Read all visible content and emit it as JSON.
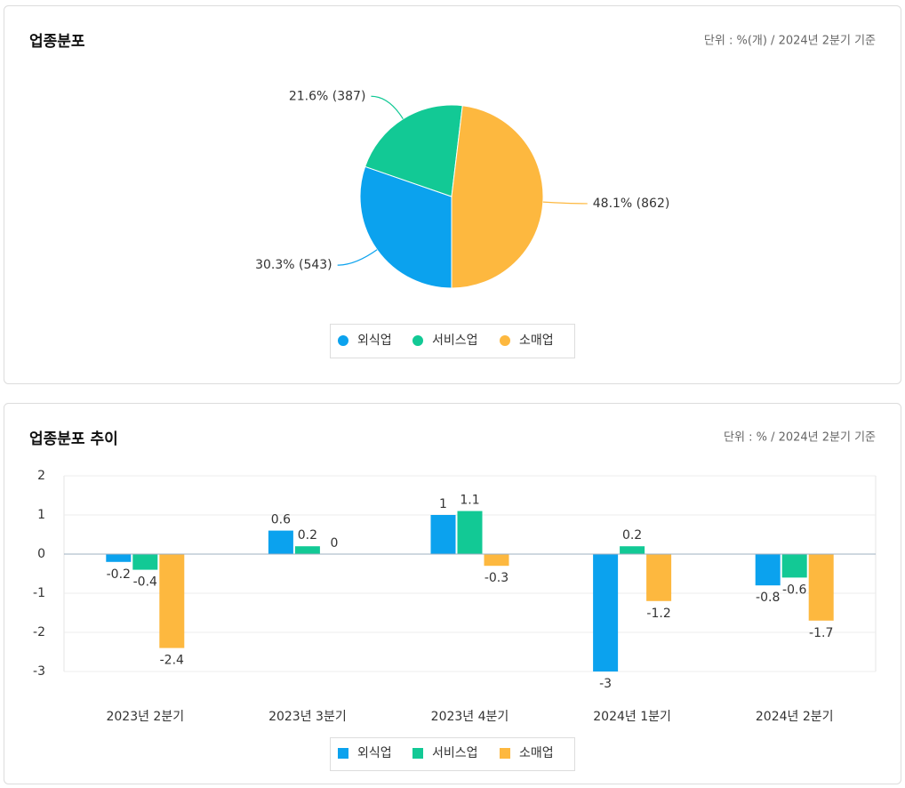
{
  "chart_data": [
    {
      "type": "pie",
      "title": "업종분포",
      "subtitle": "단위 : %(개) / 2024년 2분기 기준",
      "categories": [
        "외식업",
        "서비스업",
        "소매업"
      ],
      "values": [
        30.3,
        21.6,
        48.1
      ],
      "value_labels": [
        "30.3% (543)",
        "21.6% (387)",
        "48.1% (862)"
      ],
      "colors": [
        "#0ba2ee",
        "#12c995",
        "#fdb83f"
      ]
    },
    {
      "type": "bar",
      "title": "업종분포 추이",
      "subtitle": "단위 : % / 2024년 2분기 기준",
      "categories": [
        "2023년 2분기",
        "2023년 3분기",
        "2023년 4분기",
        "2024년 1분기",
        "2024년 2분기"
      ],
      "series": [
        {
          "name": "외식업",
          "color": "#0ba2ee",
          "values": [
            -0.2,
            0.6,
            1,
            -3,
            -0.8
          ]
        },
        {
          "name": "서비스업",
          "color": "#12c995",
          "values": [
            -0.4,
            0.2,
            1.1,
            0.2,
            -0.6
          ]
        },
        {
          "name": "소매업",
          "color": "#fdb83f",
          "values": [
            -2.4,
            0,
            -0.3,
            -1.2,
            -1.7
          ]
        }
      ],
      "ylim": [
        -3,
        2
      ],
      "yticks": [
        -3,
        -2,
        -1,
        0,
        1,
        2
      ],
      "grid": true
    }
  ]
}
